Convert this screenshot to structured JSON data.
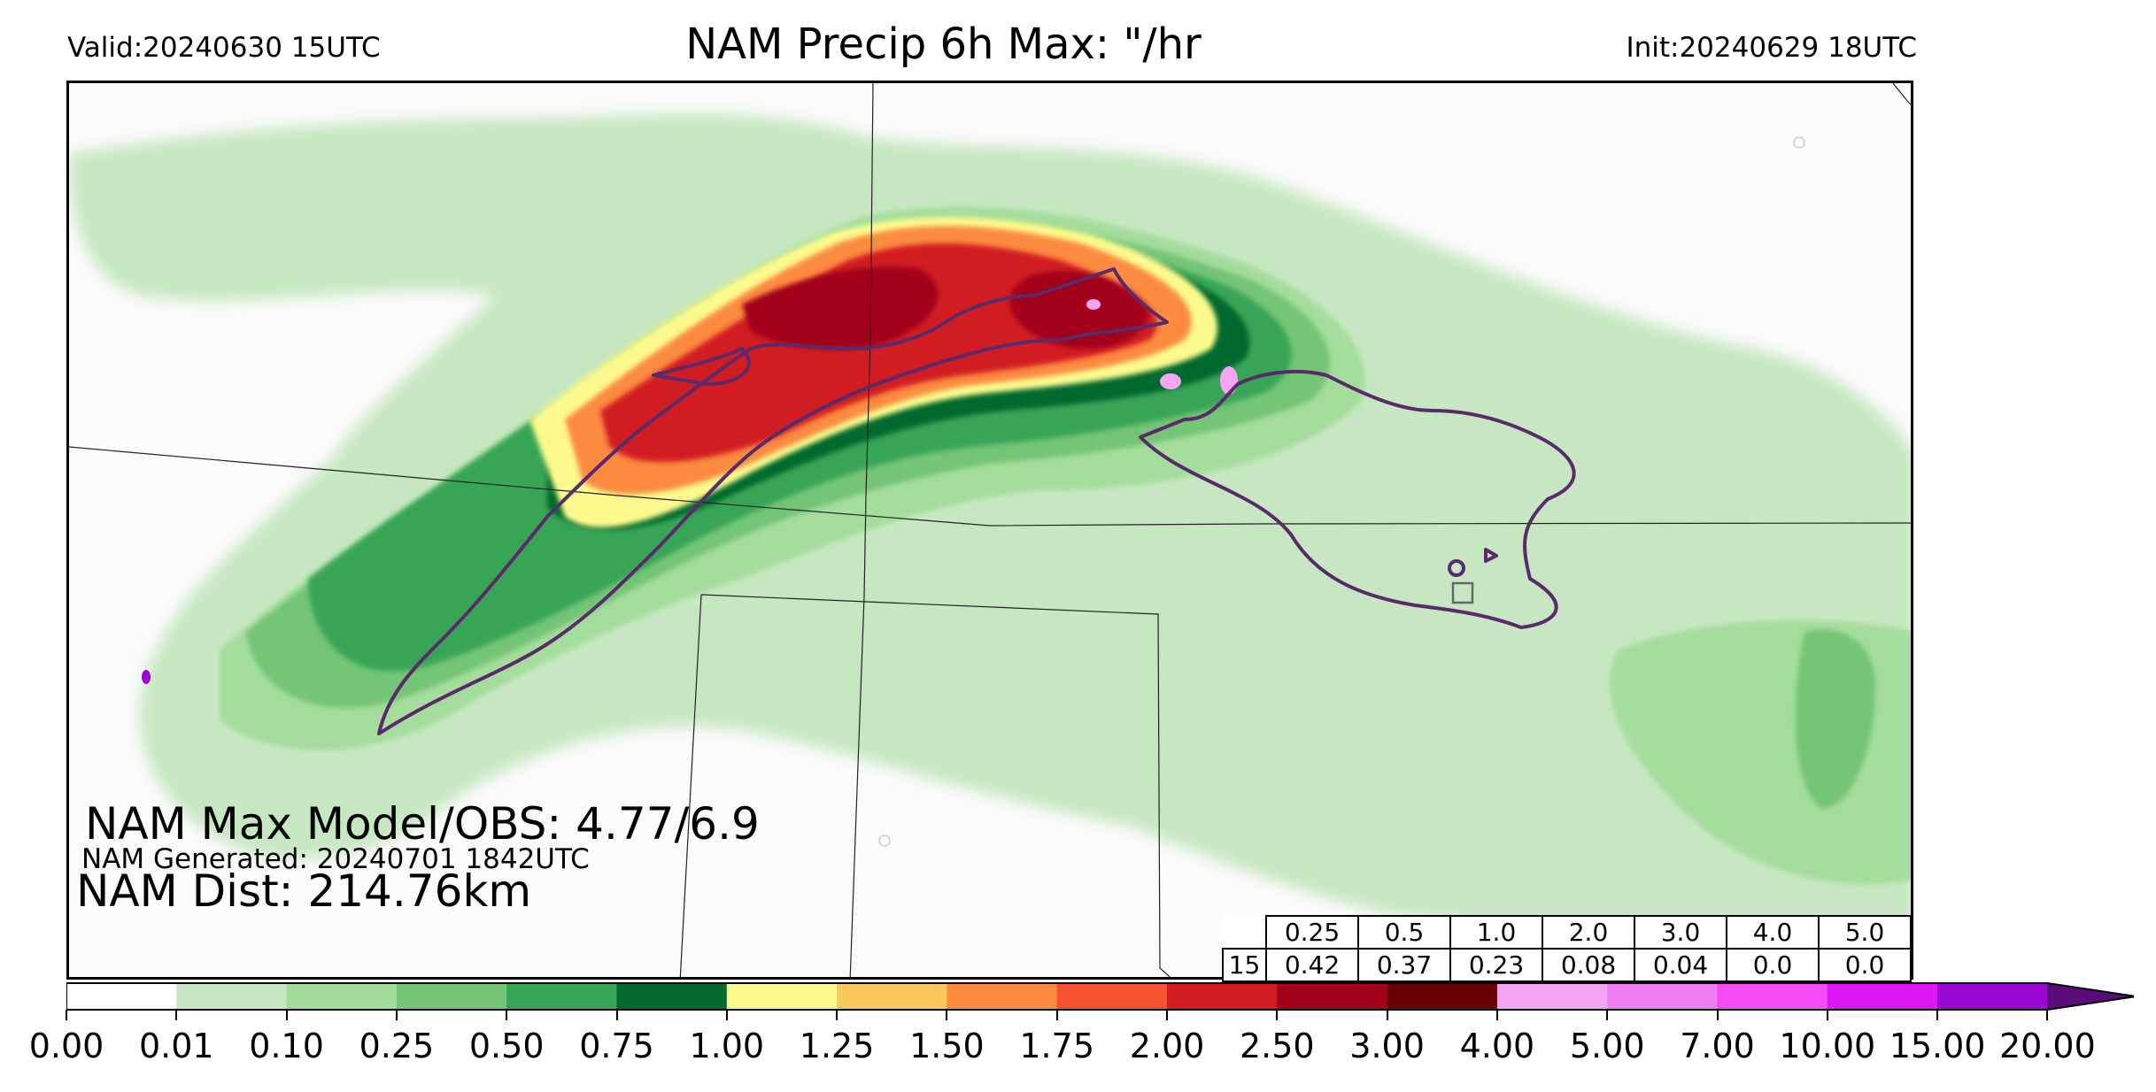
{
  "header": {
    "valid": "Valid:20240630 15UTC",
    "title": "NAM Precip 6h Max: \"/hr",
    "init": "Init:20240629 18UTC"
  },
  "stats": {
    "max_model_obs": "NAM Max Model/OBS: 4.77/6.9",
    "generated": "NAM Generated: 20240701 1842UTC",
    "dist": "NAM Dist: 214.76km"
  },
  "score_table": {
    "thresholds": [
      "0.25",
      "0.5",
      "1.0",
      "2.0",
      "3.0",
      "4.0",
      "5.0"
    ],
    "row_label": "15",
    "values": [
      "0.42",
      "0.37",
      "0.23",
      "0.08",
      "0.04",
      "0.0",
      "0.0"
    ]
  },
  "colorbar": {
    "ticks": [
      "0.00",
      "0.01",
      "0.10",
      "0.25",
      "0.50",
      "0.75",
      "1.00",
      "1.25",
      "1.50",
      "1.75",
      "2.00",
      "2.50",
      "3.00",
      "4.00",
      "5.00",
      "7.00",
      "10.00",
      "15.00",
      "20.00"
    ],
    "colors": [
      "#ffffff",
      "#c7e7c2",
      "#a1dd98",
      "#74c576",
      "#37a556",
      "#04692d",
      "#fcfa8e",
      "#fcc85c",
      "#fc8b40",
      "#f6522f",
      "#d11b21",
      "#a3001c",
      "#680104",
      "#f5a5f5",
      "#f27ef5",
      "#f54bf5",
      "#dd17f2",
      "#9c07d1"
    ],
    "extend_color": "#5a0d7a"
  },
  "map": {
    "background": "#fbfbfa",
    "obs_contour_color": "#5a2a6a",
    "boundary_color": "#222222"
  }
}
